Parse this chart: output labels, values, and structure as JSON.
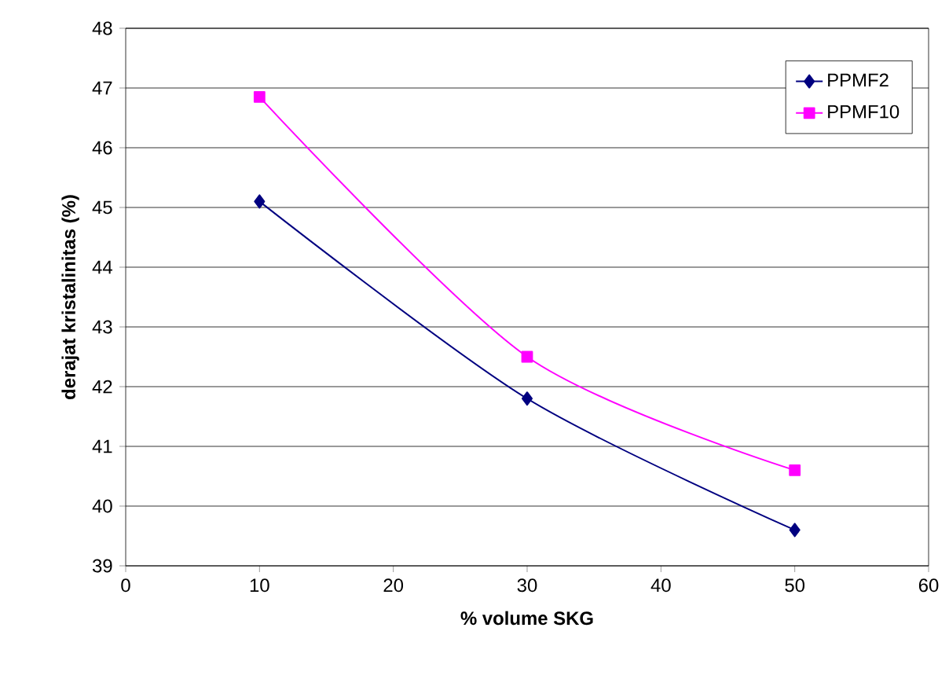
{
  "chart_data": {
    "type": "line",
    "xlabel": "% volume SKG",
    "ylabel": "derajat kristalinitas (%)",
    "x": [
      10,
      30,
      50
    ],
    "series": [
      {
        "name": "PPMF2",
        "color": "#000080",
        "marker": "diamond",
        "values": [
          45.1,
          41.8,
          39.6
        ]
      },
      {
        "name": "PPMF10",
        "color": "#ff00ff",
        "marker": "square",
        "values": [
          46.85,
          42.5,
          40.6
        ]
      }
    ],
    "xlim": [
      0,
      60
    ],
    "xticks": [
      0,
      10,
      20,
      30,
      40,
      50,
      60
    ],
    "ylim": [
      39,
      48
    ],
    "yticks": [
      39,
      40,
      41,
      42,
      43,
      44,
      45,
      46,
      47,
      48
    ],
    "grid": "y",
    "legend": "top right",
    "line_style": "solid"
  }
}
